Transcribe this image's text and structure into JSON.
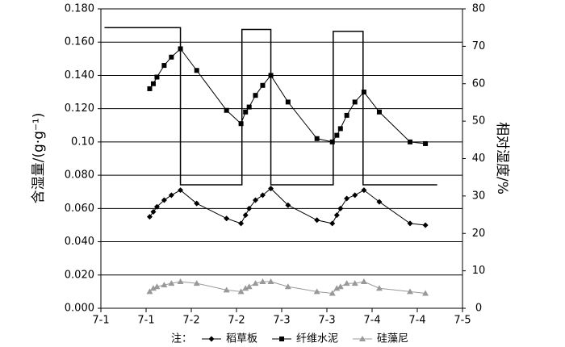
{
  "chart_data": {
    "type": "line",
    "ylabel": "含湿量/(g·g⁻¹)",
    "y2label": "相对湿度/%",
    "legend_title": "注：",
    "grid": true,
    "xlim": [
      0,
      4
    ],
    "xticks": [
      {
        "value": 0,
        "label": "7-1"
      },
      {
        "value": 0.5,
        "label": "7-1"
      },
      {
        "value": 1,
        "label": "7-2"
      },
      {
        "value": 1.5,
        "label": "7-2"
      },
      {
        "value": 2,
        "label": "7-3"
      },
      {
        "value": 2.5,
        "label": "7-3"
      },
      {
        "value": 3,
        "label": "7-4"
      },
      {
        "value": 3.5,
        "label": "7-4"
      },
      {
        "value": 4,
        "label": "7-5"
      }
    ],
    "ylim": [
      0,
      0.18
    ],
    "yticks": [
      {
        "value": 0,
        "label": "0.000"
      },
      {
        "value": 0.02,
        "label": "0.020"
      },
      {
        "value": 0.04,
        "label": "0.040"
      },
      {
        "value": 0.06,
        "label": "0.060"
      },
      {
        "value": 0.08,
        "label": "0.080"
      },
      {
        "value": 0.1,
        "label": "0.10"
      },
      {
        "value": 0.12,
        "label": "0.120"
      },
      {
        "value": 0.14,
        "label": "0.140"
      },
      {
        "value": 0.16,
        "label": "0.160"
      },
      {
        "value": 0.18,
        "label": "0.180"
      }
    ],
    "y2lim": [
      0,
      80
    ],
    "y2ticks": [
      0,
      10,
      20,
      30,
      40,
      50,
      60,
      70,
      80
    ],
    "x": [
      0.54,
      0.58,
      0.62,
      0.7,
      0.78,
      0.88,
      1.06,
      1.39,
      1.55,
      1.6,
      1.64,
      1.71,
      1.79,
      1.88,
      2.07,
      2.39,
      2.56,
      2.61,
      2.65,
      2.72,
      2.81,
      2.91,
      3.08,
      3.42,
      3.59
    ],
    "series": [
      {
        "name": "稻草板",
        "color": "#000000",
        "marker": "diamond",
        "values": [
          0.055,
          0.058,
          0.061,
          0.065,
          0.068,
          0.071,
          0.063,
          0.054,
          0.051,
          0.056,
          0.06,
          0.065,
          0.068,
          0.072,
          0.062,
          0.053,
          0.051,
          0.056,
          0.06,
          0.066,
          0.068,
          0.071,
          0.064,
          0.051,
          0.05
        ]
      },
      {
        "name": "纤维水泥",
        "color": "#000000",
        "marker": "square",
        "values": [
          0.132,
          0.135,
          0.139,
          0.146,
          0.151,
          0.156,
          0.143,
          0.119,
          0.111,
          0.118,
          0.121,
          0.128,
          0.134,
          0.14,
          0.124,
          0.102,
          0.1,
          0.104,
          0.108,
          0.116,
          0.124,
          0.13,
          0.118,
          0.1,
          0.099
        ]
      },
      {
        "name": "硅藻尼",
        "color": "#999999",
        "marker": "triangle",
        "values": [
          0.01,
          0.012,
          0.013,
          0.014,
          0.015,
          0.016,
          0.015,
          0.011,
          0.01,
          0.012,
          0.013,
          0.015,
          0.016,
          0.016,
          0.013,
          0.01,
          0.009,
          0.012,
          0.013,
          0.015,
          0.015,
          0.016,
          0.012,
          0.01,
          0.009
        ]
      },
      {
        "color": "#000000",
        "axis": "y2",
        "x": [
          0.04,
          0.88,
          0.88,
          1.56,
          1.56,
          1.88,
          1.88,
          2.57,
          2.57,
          2.9,
          2.9,
          3.72
        ],
        "values": [
          75,
          75,
          33,
          33,
          74.5,
          74.5,
          33,
          33,
          74,
          74,
          33,
          33
        ]
      }
    ]
  }
}
